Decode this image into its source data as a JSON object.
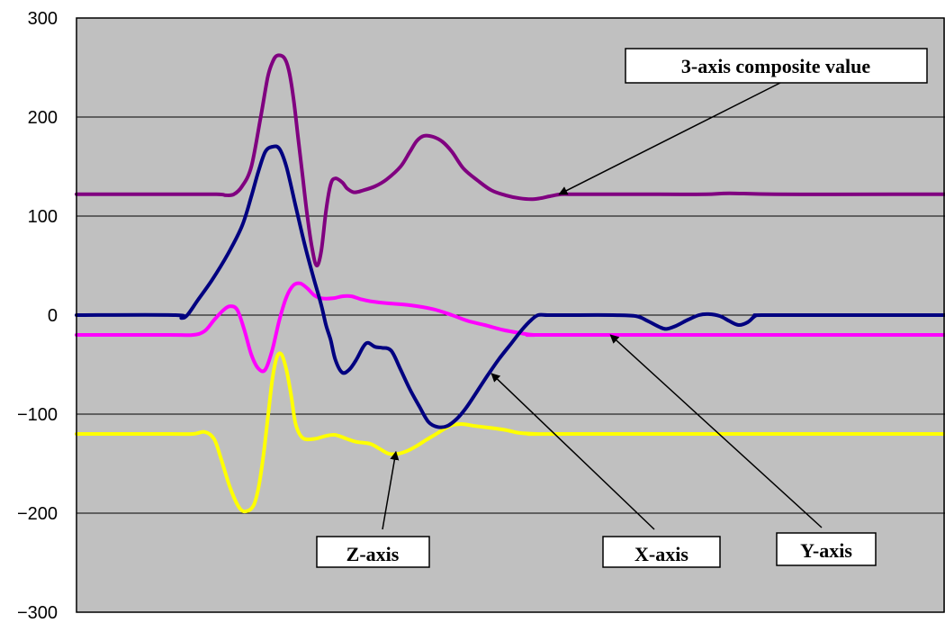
{
  "chart_data": {
    "type": "line",
    "title": "",
    "xlabel": "",
    "ylabel": "",
    "ylim": [
      -300,
      300
    ],
    "yticks": [
      "300",
      "200",
      "100",
      "0",
      "−100",
      "−200",
      "−300"
    ],
    "grid": "horizontal",
    "background": "#c0c0c0",
    "series": [
      {
        "name": "3-axis composite value",
        "color": "#800080",
        "points": [
          [
            0,
            122
          ],
          [
            75,
            122
          ],
          [
            120,
            122
          ],
          [
            128,
            121
          ],
          [
            135,
            122
          ],
          [
            142,
            130
          ],
          [
            150,
            150
          ],
          [
            158,
            200
          ],
          [
            164,
            240
          ],
          [
            168,
            255
          ],
          [
            172,
            262
          ],
          [
            178,
            260
          ],
          [
            182,
            248
          ],
          [
            186,
            220
          ],
          [
            190,
            180
          ],
          [
            194,
            140
          ],
          [
            198,
            100
          ],
          [
            202,
            68
          ],
          [
            206,
            50
          ],
          [
            210,
            65
          ],
          [
            214,
            105
          ],
          [
            218,
            132
          ],
          [
            222,
            138
          ],
          [
            228,
            134
          ],
          [
            232,
            128
          ],
          [
            238,
            124
          ],
          [
            246,
            126
          ],
          [
            256,
            130
          ],
          [
            266,
            137
          ],
          [
            278,
            150
          ],
          [
            286,
            165
          ],
          [
            292,
            176
          ],
          [
            298,
            181
          ],
          [
            306,
            180
          ],
          [
            314,
            175
          ],
          [
            322,
            165
          ],
          [
            332,
            148
          ],
          [
            344,
            136
          ],
          [
            356,
            126
          ],
          [
            368,
            121
          ],
          [
            380,
            118
          ],
          [
            390,
            117
          ],
          [
            398,
            118
          ],
          [
            406,
            120
          ],
          [
            416,
            122
          ],
          [
            430,
            122
          ],
          [
            500,
            122
          ],
          [
            540,
            122
          ],
          [
            560,
            123
          ],
          [
            600,
            122
          ],
          [
            700,
            122
          ],
          [
            745,
            122
          ]
        ]
      },
      {
        "name": "X-axis",
        "color": "#000080",
        "points": [
          [
            0,
            0
          ],
          [
            85,
            0
          ],
          [
            90,
            -3
          ],
          [
            95,
            0
          ],
          [
            104,
            15
          ],
          [
            116,
            35
          ],
          [
            130,
            62
          ],
          [
            142,
            90
          ],
          [
            150,
            120
          ],
          [
            156,
            145
          ],
          [
            162,
            165
          ],
          [
            168,
            170
          ],
          [
            174,
            168
          ],
          [
            180,
            150
          ],
          [
            188,
            110
          ],
          [
            196,
            70
          ],
          [
            204,
            35
          ],
          [
            210,
            10
          ],
          [
            214,
            -10
          ],
          [
            218,
            -25
          ],
          [
            222,
            -45
          ],
          [
            228,
            -58
          ],
          [
            234,
            -55
          ],
          [
            240,
            -45
          ],
          [
            246,
            -32
          ],
          [
            250,
            -28
          ],
          [
            256,
            -32
          ],
          [
            262,
            -33
          ],
          [
            270,
            -36
          ],
          [
            278,
            -55
          ],
          [
            286,
            -75
          ],
          [
            294,
            -92
          ],
          [
            302,
            -108
          ],
          [
            310,
            -113
          ],
          [
            318,
            -112
          ],
          [
            326,
            -105
          ],
          [
            334,
            -94
          ],
          [
            342,
            -80
          ],
          [
            352,
            -62
          ],
          [
            362,
            -45
          ],
          [
            372,
            -30
          ],
          [
            382,
            -15
          ],
          [
            390,
            -5
          ],
          [
            396,
            0
          ],
          [
            404,
            0
          ],
          [
            420,
            0
          ],
          [
            460,
            0
          ],
          [
            480,
            -1
          ],
          [
            490,
            -6
          ],
          [
            500,
            -12
          ],
          [
            506,
            -14
          ],
          [
            514,
            -11
          ],
          [
            524,
            -5
          ],
          [
            534,
            0
          ],
          [
            542,
            1
          ],
          [
            552,
            -1
          ],
          [
            560,
            -6
          ],
          [
            568,
            -10
          ],
          [
            576,
            -7
          ],
          [
            582,
            -1
          ],
          [
            588,
            0
          ],
          [
            650,
            0
          ],
          [
            745,
            0
          ]
        ]
      },
      {
        "name": "Y-axis",
        "color": "#ff00ff",
        "points": [
          [
            0,
            -20
          ],
          [
            80,
            -20
          ],
          [
            100,
            -20
          ],
          [
            110,
            -16
          ],
          [
            118,
            -5
          ],
          [
            126,
            5
          ],
          [
            132,
            9
          ],
          [
            138,
            5
          ],
          [
            144,
            -15
          ],
          [
            150,
            -40
          ],
          [
            156,
            -54
          ],
          [
            162,
            -55
          ],
          [
            168,
            -35
          ],
          [
            174,
            -5
          ],
          [
            180,
            18
          ],
          [
            186,
            30
          ],
          [
            192,
            32
          ],
          [
            198,
            27
          ],
          [
            204,
            20
          ],
          [
            210,
            17
          ],
          [
            220,
            17
          ],
          [
            228,
            19
          ],
          [
            236,
            19
          ],
          [
            244,
            16
          ],
          [
            252,
            14
          ],
          [
            266,
            12
          ],
          [
            286,
            10
          ],
          [
            306,
            6
          ],
          [
            322,
            0
          ],
          [
            336,
            -6
          ],
          [
            350,
            -10
          ],
          [
            366,
            -15
          ],
          [
            380,
            -18
          ],
          [
            392,
            -20
          ],
          [
            420,
            -20
          ],
          [
            745,
            -20
          ]
        ]
      },
      {
        "name": "Z-axis",
        "color": "#ffff00",
        "points": [
          [
            0,
            -120
          ],
          [
            80,
            -120
          ],
          [
            100,
            -120
          ],
          [
            110,
            -118
          ],
          [
            118,
            -125
          ],
          [
            124,
            -145
          ],
          [
            132,
            -175
          ],
          [
            140,
            -195
          ],
          [
            146,
            -198
          ],
          [
            152,
            -192
          ],
          [
            156,
            -175
          ],
          [
            160,
            -145
          ],
          [
            164,
            -105
          ],
          [
            168,
            -65
          ],
          [
            172,
            -42
          ],
          [
            176,
            -40
          ],
          [
            180,
            -55
          ],
          [
            184,
            -80
          ],
          [
            188,
            -110
          ],
          [
            194,
            -124
          ],
          [
            204,
            -125
          ],
          [
            214,
            -122
          ],
          [
            222,
            -121
          ],
          [
            232,
            -125
          ],
          [
            240,
            -128
          ],
          [
            252,
            -130
          ],
          [
            260,
            -135
          ],
          [
            268,
            -140
          ],
          [
            276,
            -140
          ],
          [
            284,
            -137
          ],
          [
            292,
            -132
          ],
          [
            300,
            -126
          ],
          [
            310,
            -119
          ],
          [
            320,
            -112
          ],
          [
            330,
            -110
          ],
          [
            342,
            -112
          ],
          [
            356,
            -114
          ],
          [
            368,
            -116
          ],
          [
            380,
            -119
          ],
          [
            394,
            -120
          ],
          [
            420,
            -120
          ],
          [
            745,
            -120
          ]
        ]
      }
    ],
    "annotations": [
      {
        "text": "3-axis composite value",
        "target": [
          414,
          122
        ]
      },
      {
        "text": "Z-axis",
        "target": [
          274,
          -138
        ]
      },
      {
        "text": "X-axis",
        "target": [
          356,
          -59
        ]
      },
      {
        "text": "Y-axis",
        "target": [
          458,
          -20
        ]
      }
    ]
  }
}
